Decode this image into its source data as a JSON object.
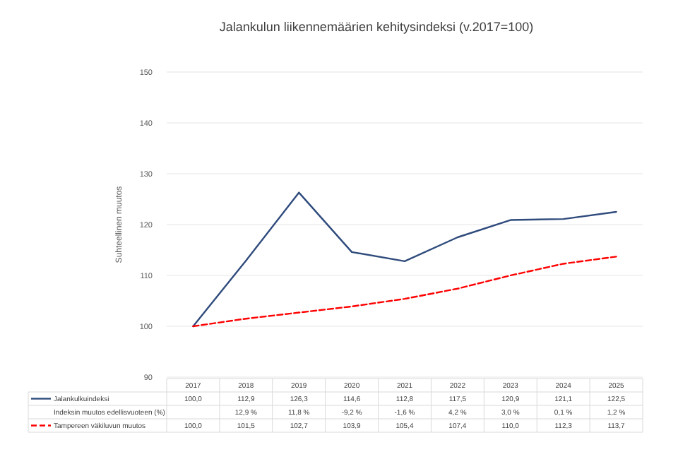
{
  "chart_data": {
    "type": "line",
    "title": "Jalankulun liikennemäärien kehitysindeksi (v.2017=100)",
    "ylabel": "Suhteellinen muutos",
    "categories": [
      "2017",
      "2018",
      "2019",
      "2020",
      "2021",
      "2022",
      "2023",
      "2024",
      "2025"
    ],
    "ylim": [
      90,
      150
    ],
    "yticks": [
      90,
      100,
      110,
      120,
      130,
      140,
      150
    ],
    "grid": "y",
    "legend": "bottom",
    "data_labels": true,
    "series": [
      {
        "name": "Jalankulkuindeksi",
        "color": "#2f4b7c",
        "line_style": "solid",
        "values": [
          100.0,
          112.9,
          126.3,
          114.6,
          112.8,
          117.5,
          120.9,
          121.1,
          122.5
        ],
        "value_labels": [
          "100,0",
          "112,9",
          "126,3",
          "114,6",
          "112,8",
          "117,5",
          "120,9",
          "121,1",
          "122,5"
        ]
      },
      {
        "name": "Tampereen väkiluvun muutos",
        "color": "#ff0000",
        "line_style": "dashed",
        "values": [
          100.0,
          101.5,
          102.7,
          103.9,
          105.4,
          107.4,
          110.0,
          112.3,
          113.7
        ],
        "value_labels": [
          "100,0",
          "101,5",
          "102,7",
          "103,9",
          "105,4",
          "107,4",
          "110,0",
          "112,3",
          "113,7"
        ]
      }
    ],
    "annotations": [
      "Indeksin muutos edellisvuoteen (%)",
      "12,9 %",
      "11,8 %",
      "-9,2 %",
      "-1,6 %",
      "4,2 %",
      "3,0 %",
      "0,1 %",
      "1,2 %"
    ]
  }
}
